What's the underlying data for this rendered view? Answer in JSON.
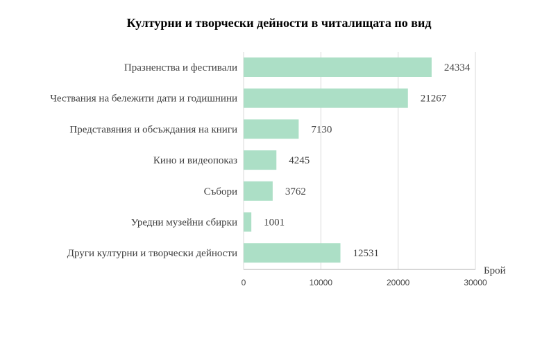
{
  "chart_data": {
    "type": "bar",
    "orientation": "horizontal",
    "title": "Културни и творчески дейности в читалищата по вид",
    "xlabel": "Брой",
    "ylabel": "",
    "categories": [
      "Празненства и фестивали",
      "Чествания на бележити дати и годишнини",
      "Представяния и обсъждания на книги",
      "Кино и видеопоказ",
      "Събори",
      "Уредни музейни сбирки",
      "Други културни и творчески дейности"
    ],
    "values": [
      24334,
      21267,
      7130,
      4245,
      3762,
      1001,
      12531
    ],
    "xlim": [
      0,
      30000
    ],
    "xticks": [
      "0",
      "10000",
      "20000",
      "30000"
    ],
    "xtick_values": [
      0,
      10000,
      20000,
      30000
    ],
    "grid": true,
    "bar_color": "#acdfc6"
  }
}
